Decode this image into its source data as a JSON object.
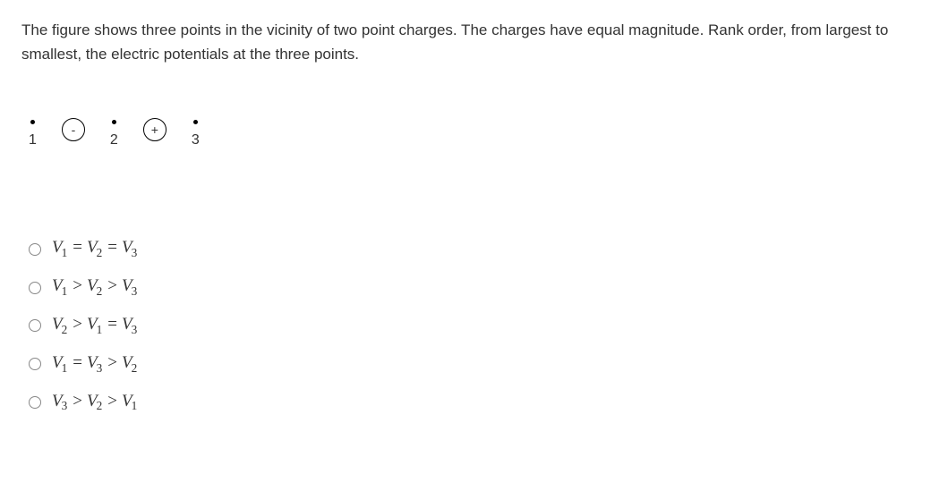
{
  "question": {
    "text": "The figure shows three points in the vicinity of two point charges. The charges have equal magnitude. Rank order, from largest to smallest, the electric potentials at the three points."
  },
  "figure": {
    "points": [
      "1",
      "2",
      "3"
    ],
    "charges": [
      "-",
      "+"
    ]
  },
  "options": [
    {
      "terms": [
        "V1",
        "V2",
        "V3"
      ],
      "ops": [
        "=",
        "="
      ]
    },
    {
      "terms": [
        "V1",
        "V2",
        "V3"
      ],
      "ops": [
        ">",
        ">"
      ]
    },
    {
      "terms": [
        "V2",
        "V1",
        "V3"
      ],
      "ops": [
        ">",
        "="
      ]
    },
    {
      "terms": [
        "V1",
        "V3",
        "V2"
      ],
      "ops": [
        "=",
        ">"
      ]
    },
    {
      "terms": [
        "V3",
        "V2",
        "V1"
      ],
      "ops": [
        ">",
        ">"
      ]
    }
  ]
}
